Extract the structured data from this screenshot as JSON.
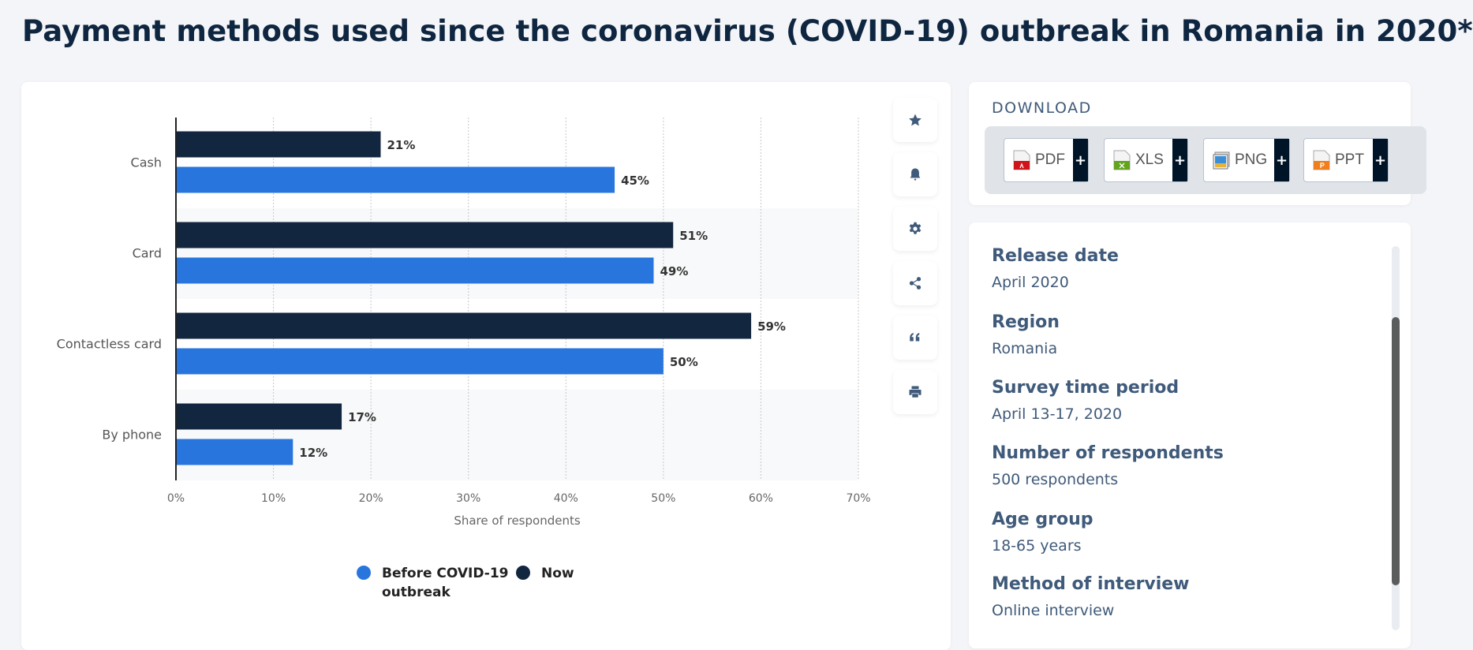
{
  "page": {
    "title": "Payment methods used since the coronavirus (COVID-19) outbreak in Romania in 2020*"
  },
  "chart_data": {
    "type": "bar",
    "orientation": "horizontal",
    "title": "Payment methods used since the coronavirus (COVID-19) outbreak in Romania in 2020*",
    "categories": [
      "Cash",
      "Card",
      "Contactless card",
      "By phone"
    ],
    "series": [
      {
        "name": "Now",
        "color": "#13263f",
        "values": [
          21,
          51,
          59,
          17
        ]
      },
      {
        "name": "Before COVID-19 outbreak",
        "color": "#2876dd",
        "values": [
          45,
          49,
          50,
          12
        ]
      }
    ],
    "value_suffix": "%",
    "xlabel": "Share of respondents",
    "ylabel": "",
    "xlim": [
      0,
      70
    ],
    "xticks": [
      0,
      10,
      20,
      30,
      40,
      50,
      60,
      70
    ],
    "xtick_labels": [
      "0%",
      "10%",
      "20%",
      "30%",
      "40%",
      "50%",
      "60%",
      "70%"
    ],
    "grid": true,
    "legend": {
      "position": "bottom",
      "items": [
        {
          "label": "Before COVID-19 outbreak",
          "line1": "Before COVID-19",
          "line2": "outbreak",
          "color": "#2876dd"
        },
        {
          "label": "Now",
          "line1": "Now",
          "line2": "",
          "color": "#13263f"
        }
      ]
    }
  },
  "tools": [
    {
      "name": "favorite",
      "icon": "star-icon"
    },
    {
      "name": "notification",
      "icon": "bell-icon"
    },
    {
      "name": "settings",
      "icon": "gear-icon"
    },
    {
      "name": "share",
      "icon": "share-icon"
    },
    {
      "name": "cite",
      "icon": "quote-icon"
    },
    {
      "name": "print",
      "icon": "print-icon"
    }
  ],
  "download": {
    "title": "DOWNLOAD",
    "buttons": [
      {
        "label": "PDF",
        "icon": "pdf-file-icon",
        "plus": "+"
      },
      {
        "label": "XLS",
        "icon": "xls-file-icon",
        "plus": "+"
      },
      {
        "label": "PNG",
        "icon": "png-image-icon",
        "plus": "+"
      },
      {
        "label": "PPT",
        "icon": "ppt-file-icon",
        "plus": "+"
      }
    ]
  },
  "info": [
    {
      "label": "Release date",
      "value": "April 2020"
    },
    {
      "label": "Region",
      "value": "Romania"
    },
    {
      "label": "Survey time period",
      "value": "April 13-17, 2020"
    },
    {
      "label": "Number of respondents",
      "value": "500 respondents"
    },
    {
      "label": "Age group",
      "value": "18-65 years"
    },
    {
      "label": "Method of interview",
      "value": "Online interview"
    }
  ]
}
